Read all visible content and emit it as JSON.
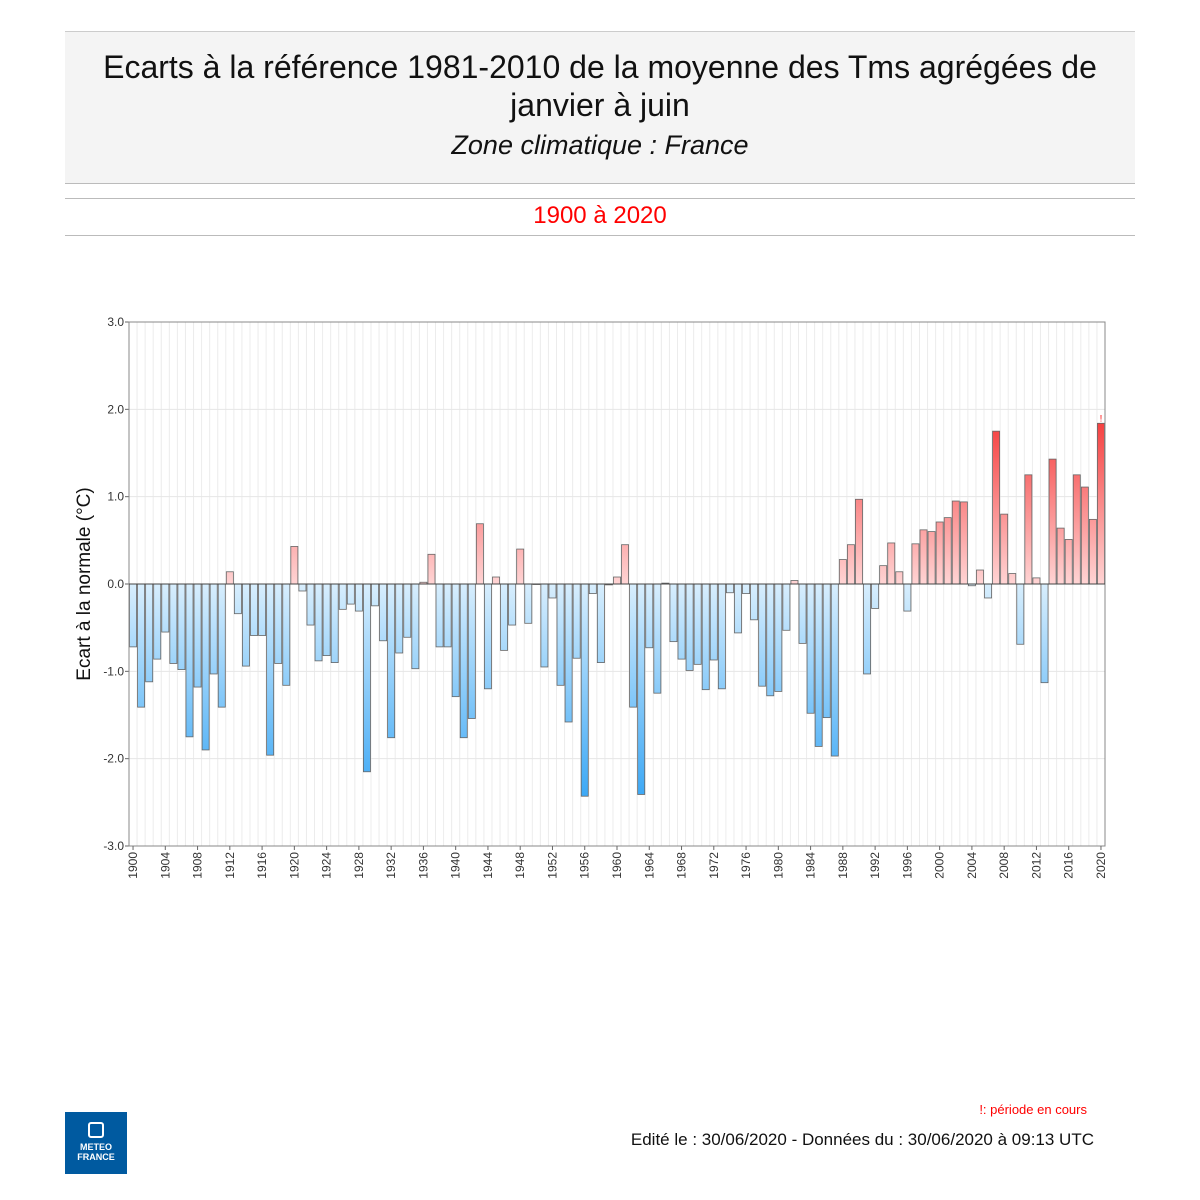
{
  "header": {
    "title": "Ecarts à la référence 1981-2010 de la moyenne des Tms agrégées de janvier à juin",
    "subtitle": "Zone climatique : France",
    "period": "1900 à 2020"
  },
  "footer": {
    "note": "!: période en cours",
    "edited": "Edité le : 30/06/2020 - Données du : 30/06/2020 à 09:13 UTC",
    "logo_text": "METEO FRANCE"
  },
  "chart_data": {
    "type": "bar",
    "title": "Ecarts à la référence 1981-2010 de la moyenne des Tms agrégées de janvier à juin",
    "ylabel": "Ecart à la normale (°C)",
    "xlabel": "",
    "ylim": [
      -3,
      3
    ],
    "yticks": [
      "3.0",
      "2.0",
      "1.0",
      "0.0",
      "-1.0",
      "-2.0",
      "-3.0"
    ],
    "xstart": 1900,
    "xtick_step": 4,
    "grid": true,
    "colors": {
      "negative_light": "#d8eefd",
      "negative_dark": "#38a6f5",
      "positive_light": "#ffd4d4",
      "positive_dark": "#f53c3c"
    },
    "current_period_marker": {
      "year": 2020,
      "label": "!"
    },
    "values": [
      -0.72,
      -1.41,
      -1.12,
      -0.86,
      -0.55,
      -0.91,
      -0.98,
      -1.75,
      -1.18,
      -1.9,
      -1.03,
      -1.41,
      0.14,
      -0.34,
      -0.94,
      -0.59,
      -0.59,
      -1.96,
      -0.91,
      -1.16,
      0.43,
      -0.08,
      -0.47,
      -0.88,
      -0.82,
      -0.9,
      -0.29,
      -0.23,
      -0.31,
      -2.15,
      -0.25,
      -0.65,
      -1.76,
      -0.79,
      -0.61,
      -0.97,
      0.02,
      0.34,
      -0.72,
      -0.72,
      -1.29,
      -1.76,
      -1.54,
      0.69,
      -1.2,
      0.08,
      -0.76,
      -0.47,
      0.4,
      -0.45,
      0.0,
      -0.95,
      -0.16,
      -1.16,
      -1.58,
      -0.85,
      -2.43,
      -0.11,
      -0.9,
      -0.01,
      0.08,
      0.45,
      -1.41,
      -2.41,
      -0.73,
      -1.25,
      0.01,
      -0.66,
      -0.86,
      -0.99,
      -0.92,
      -1.21,
      -0.87,
      -1.2,
      -0.1,
      -0.56,
      -0.11,
      -0.41,
      -1.17,
      -1.28,
      -1.23,
      -0.53,
      0.04,
      -0.68,
      -1.48,
      -1.86,
      -1.53,
      -1.97,
      0.28,
      0.45,
      0.97,
      -1.03,
      -0.28,
      0.21,
      0.47,
      0.14,
      -0.31,
      0.46,
      0.62,
      0.6,
      0.71,
      0.76,
      0.95,
      0.94,
      -0.02,
      0.16,
      -0.16,
      1.75,
      0.8,
      0.12,
      -0.69,
      1.25,
      0.07,
      -1.13,
      1.43,
      0.64,
      0.51,
      1.25,
      1.11,
      0.74,
      1.84
    ]
  }
}
